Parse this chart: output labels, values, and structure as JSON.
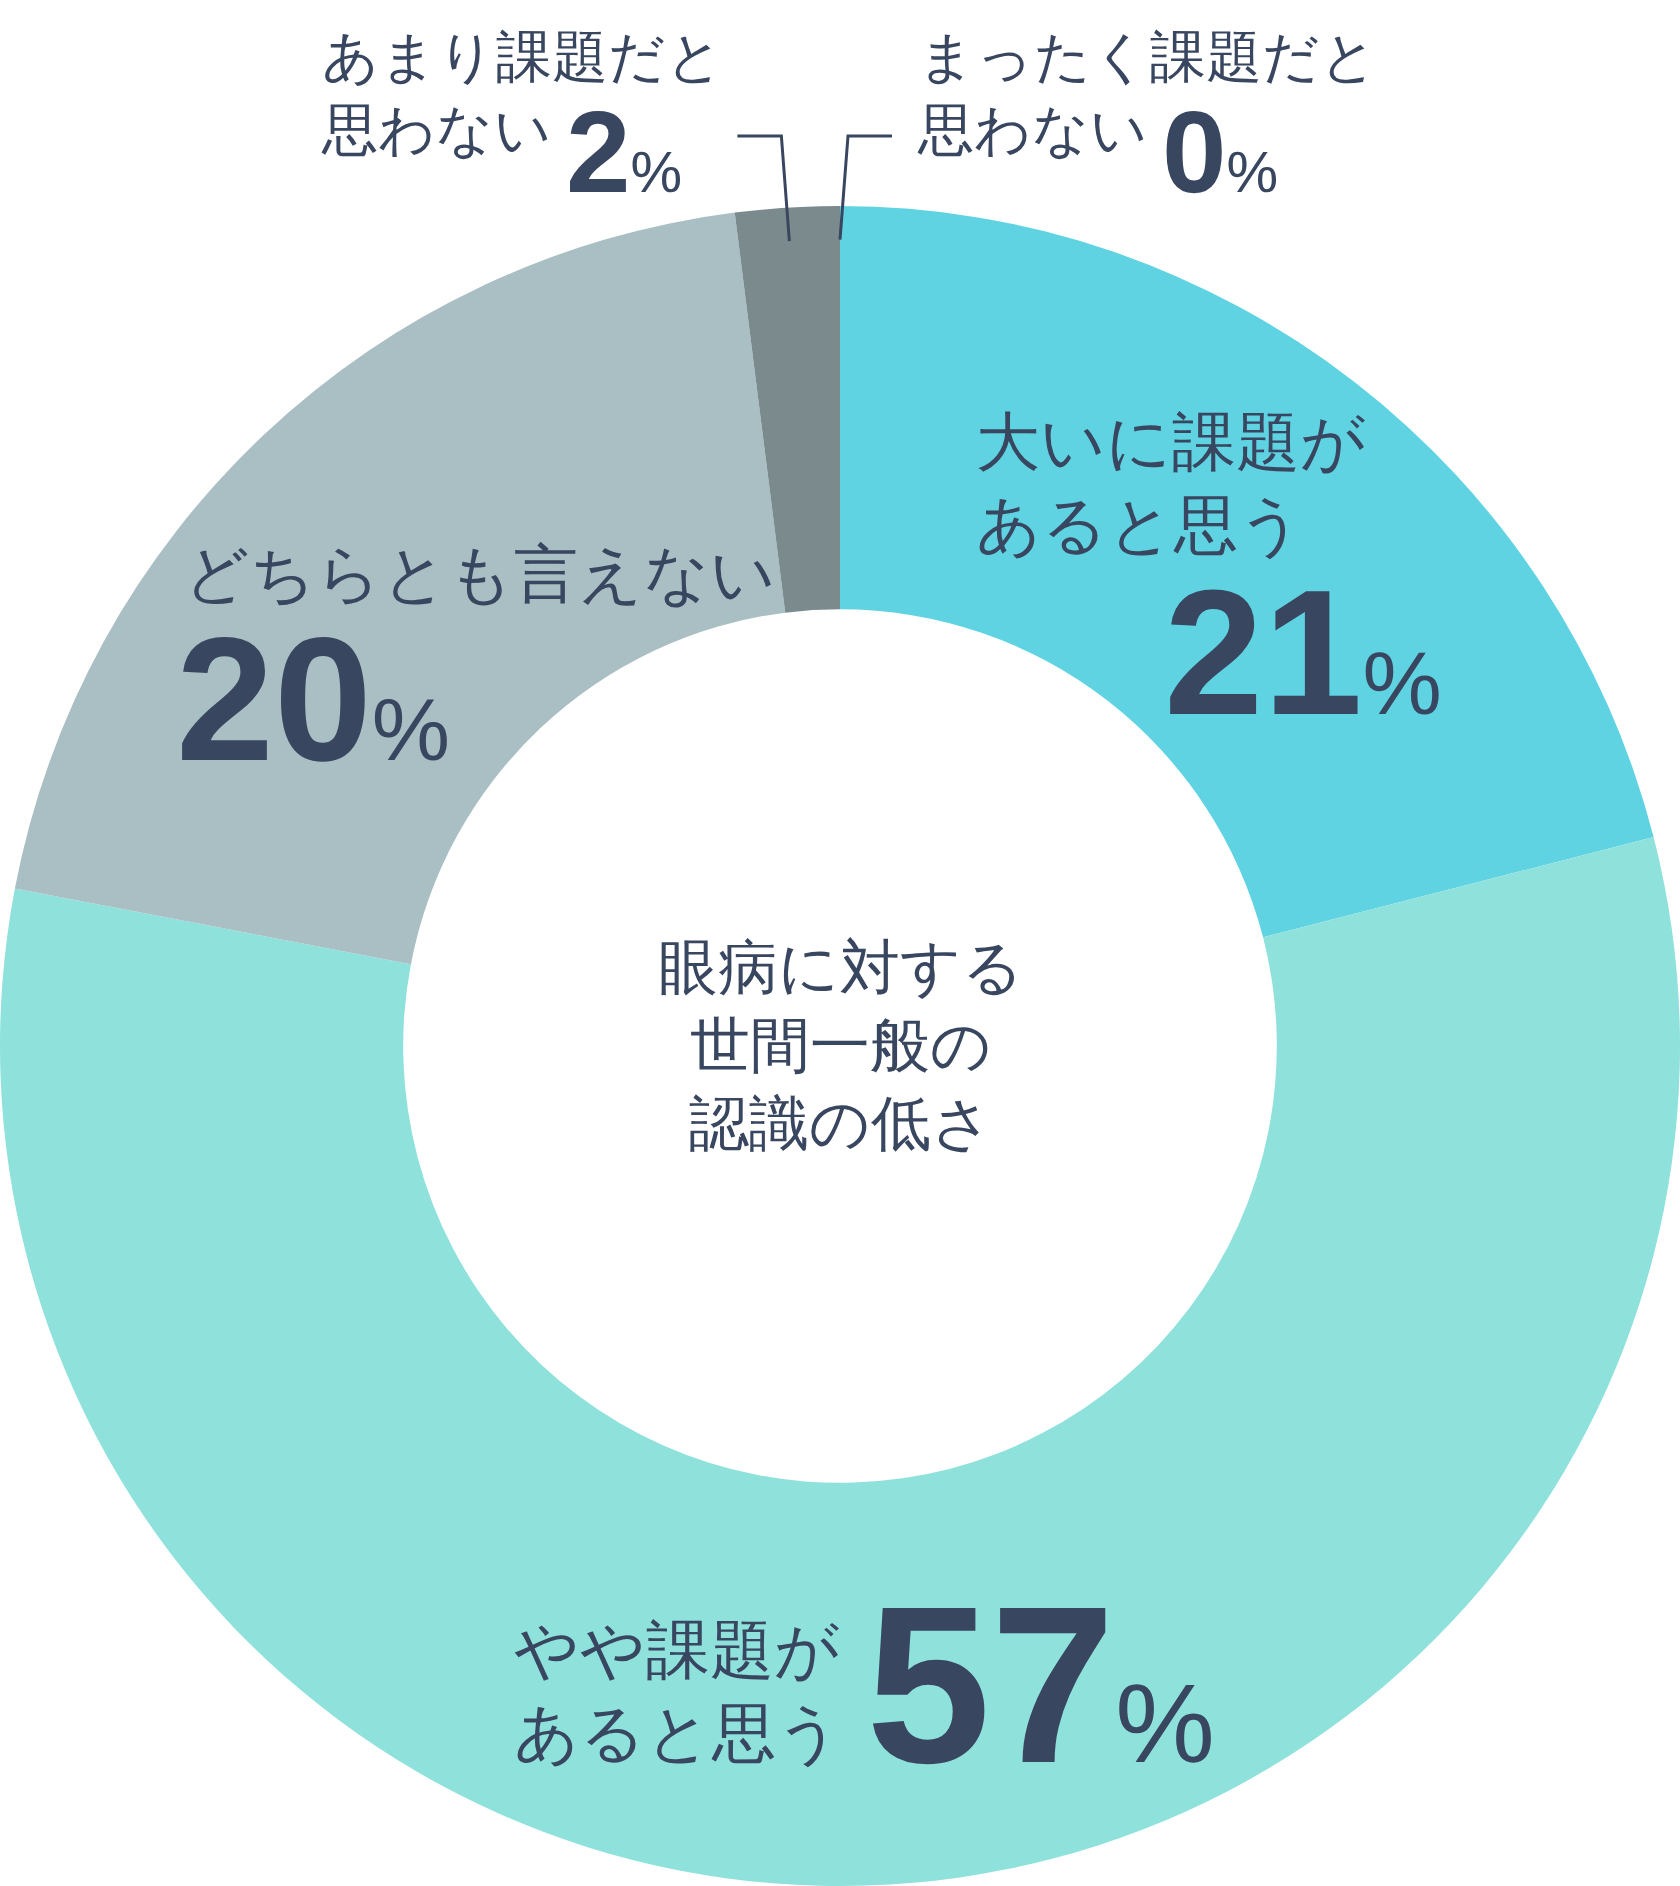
{
  "chart_data": {
    "type": "donut",
    "title": "眼病に対する世間一般の認識の低さ",
    "categories": [
      "大いに課題があると思う",
      "やや課題があると思う",
      "どちらとも言えない",
      "あまり課題だと思わない",
      "まったく課題だと思わない"
    ],
    "values": [
      21,
      57,
      20,
      2,
      0
    ],
    "colors": [
      "#5fd3e2",
      "#8fe1dc",
      "#a9bfc3",
      "#7b8a8c",
      "#5f6d70"
    ],
    "value_labels": [
      "21%",
      "57%",
      "20%",
      "2%",
      "0%"
    ]
  }
}
